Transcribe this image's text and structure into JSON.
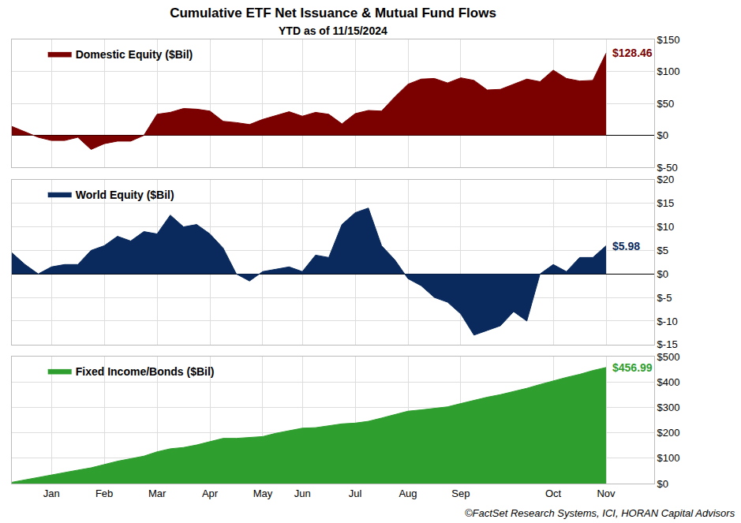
{
  "title": "Cumulative ETF Net Issuance & Mutual Fund Flows",
  "subtitle": "YTD as of 11/15/2024",
  "source": "©FactSet Research Systems, ICI, HORAN Capital Advisors",
  "chart_data": [
    {
      "type": "area",
      "categories": [
        null,
        null,
        null,
        "Jan",
        null,
        null,
        null,
        "Feb",
        null,
        null,
        null,
        "Mar",
        null,
        null,
        null,
        "Apr",
        null,
        null,
        null,
        "May",
        null,
        null,
        "Jun",
        null,
        null,
        null,
        "Jul",
        null,
        null,
        null,
        "Aug",
        null,
        null,
        null,
        "Sep",
        null,
        null,
        null,
        null,
        null,
        null,
        "Oct",
        null,
        null,
        null,
        "Nov"
      ],
      "series": [
        {
          "name": "Domestic Equity ($Bil)",
          "color": "#7b0000",
          "values": [
            14,
            5,
            -3,
            -8,
            -8,
            -3,
            -22,
            -13,
            -9,
            -9,
            0,
            33,
            36,
            42,
            41,
            38,
            22,
            20,
            17,
            25,
            31,
            37,
            30,
            36,
            33,
            18,
            34,
            39,
            38,
            60,
            80,
            88,
            89,
            82,
            90,
            86,
            71,
            72,
            80,
            88,
            84,
            102,
            89,
            85,
            86,
            128.46
          ]
        }
      ],
      "ylim": [
        -50,
        150
      ],
      "yticks": [
        {
          "value": -50,
          "label": "$-50"
        },
        {
          "value": 0,
          "label": "$0"
        },
        {
          "value": 50,
          "label": "$50"
        },
        {
          "value": 100,
          "label": "$100"
        },
        {
          "value": 150,
          "label": "$150"
        }
      ],
      "grid": true,
      "legend": "top left",
      "tick_labels": "y",
      "annotations": [
        {
          "text": "$128.46"
        }
      ]
    },
    {
      "type": "area",
      "categories": [
        null,
        null,
        null,
        "Jan",
        null,
        null,
        null,
        "Feb",
        null,
        null,
        null,
        "Mar",
        null,
        null,
        null,
        "Apr",
        null,
        null,
        null,
        "May",
        null,
        null,
        "Jun",
        null,
        null,
        null,
        "Jul",
        null,
        null,
        null,
        "Aug",
        null,
        null,
        null,
        "Sep",
        null,
        null,
        null,
        null,
        null,
        null,
        "Oct",
        null,
        null,
        null,
        "Nov"
      ],
      "series": [
        {
          "name": "World Equity ($Bil)",
          "color": "#0a2a5e",
          "values": [
            4.5,
            2,
            0,
            1.5,
            2,
            2,
            5,
            6,
            8,
            7,
            9,
            8.5,
            12.5,
            10,
            10.5,
            8.5,
            5.5,
            0,
            -1.5,
            0.5,
            1,
            1.5,
            0.5,
            4,
            3.5,
            10.5,
            13,
            14,
            6,
            3,
            -1,
            -2.5,
            -5,
            -6,
            -8.5,
            -13,
            -12,
            -11,
            -8,
            -10,
            0,
            2,
            0.5,
            3.5,
            3.5,
            5.98
          ]
        }
      ],
      "ylim": [
        -15,
        20
      ],
      "yticks": [
        {
          "value": -15,
          "label": "$-15"
        },
        {
          "value": -10,
          "label": "$-10"
        },
        {
          "value": -5,
          "label": "$-5"
        },
        {
          "value": 0,
          "label": "$0"
        },
        {
          "value": 5,
          "label": "$5"
        },
        {
          "value": 10,
          "label": "$10"
        },
        {
          "value": 15,
          "label": "$15"
        },
        {
          "value": 20,
          "label": "$20"
        }
      ],
      "grid": true,
      "legend": "top left",
      "tick_labels": "y",
      "annotations": [
        {
          "text": "$5.98"
        }
      ]
    },
    {
      "type": "area",
      "categories": [
        null,
        null,
        null,
        "Jan",
        null,
        null,
        null,
        "Feb",
        null,
        null,
        null,
        "Mar",
        null,
        null,
        null,
        "Apr",
        null,
        null,
        null,
        "May",
        null,
        null,
        "Jun",
        null,
        null,
        null,
        "Jul",
        null,
        null,
        null,
        "Aug",
        null,
        null,
        null,
        "Sep",
        null,
        null,
        null,
        null,
        null,
        null,
        "Oct",
        null,
        null,
        null,
        "Nov"
      ],
      "series": [
        {
          "name": "Fixed Income/Bonds ($Bil)",
          "color": "#2e9e2e",
          "values": [
            5,
            15,
            25,
            35,
            45,
            53,
            62,
            75,
            88,
            98,
            108,
            125,
            137,
            142,
            152,
            165,
            178,
            178,
            181,
            185,
            198,
            208,
            218,
            220,
            228,
            235,
            238,
            245,
            258,
            272,
            285,
            290,
            295,
            302,
            315,
            328,
            340,
            350,
            362,
            375,
            390,
            405,
            418,
            430,
            445,
            456.99
          ]
        }
      ],
      "ylim": [
        0,
        500
      ],
      "yticks": [
        {
          "value": 0,
          "label": "$0"
        },
        {
          "value": 100,
          "label": "$100"
        },
        {
          "value": 200,
          "label": "$200"
        },
        {
          "value": 300,
          "label": "$300"
        },
        {
          "value": 400,
          "label": "$400"
        },
        {
          "value": 500,
          "label": "$500"
        }
      ],
      "grid": true,
      "legend": "top left",
      "tick_labels": true,
      "annotations": [
        {
          "text": "$456.99"
        }
      ]
    }
  ]
}
